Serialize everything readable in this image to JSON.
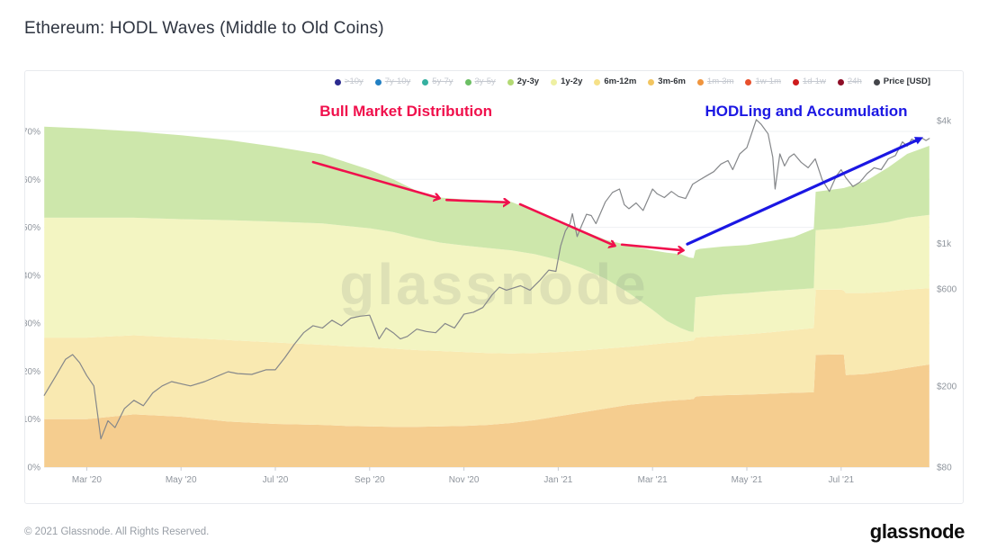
{
  "page": {
    "title": "Ethereum: HODL Waves (Middle to Old Coins)",
    "footer": {
      "copyright": "© 2021 Glassnode. All Rights Reserved.",
      "brand": "glassnode"
    }
  },
  "watermark": "glassnode",
  "legend": {
    "items": [
      {
        "label": ">10y",
        "color": "#2b2a8f",
        "active": false
      },
      {
        "label": "7y-10y",
        "color": "#2280c3",
        "active": false
      },
      {
        "label": "5y-7y",
        "color": "#35b0a0",
        "active": false
      },
      {
        "label": "3y-5y",
        "color": "#6cbf64",
        "active": false
      },
      {
        "label": "2y-3y",
        "color": "#b3d973",
        "active": true
      },
      {
        "label": "1y-2y",
        "color": "#eef0a2",
        "active": true
      },
      {
        "label": "6m-12m",
        "color": "#f6e188",
        "active": true
      },
      {
        "label": "3m-6m",
        "color": "#f2c560",
        "active": true
      },
      {
        "label": "1m-3m",
        "color": "#f0953e",
        "active": false
      },
      {
        "label": "1w-1m",
        "color": "#e8502c",
        "active": false
      },
      {
        "label": "1d-1w",
        "color": "#ce1a1c",
        "active": false
      },
      {
        "label": "24h",
        "color": "#8e0e27",
        "active": false
      },
      {
        "label": "Price [USD]",
        "color": "#43454a",
        "active": true
      }
    ]
  },
  "annotations": {
    "labels": [
      {
        "text": "Bull Market Distribution",
        "t": 7.77,
        "pct": 74.3,
        "color": "#f0104c"
      },
      {
        "text": "HODLing and Accumulation",
        "t": 16.26,
        "pct": 74.3,
        "color": "#1b17e3"
      }
    ],
    "arrows": [
      {
        "from": [
          5.8,
          63.6
        ],
        "to": [
          8.47,
          56.1
        ],
        "color": "#f0104c",
        "head": "chevron",
        "width": 2.6
      },
      {
        "from": [
          8.63,
          55.7
        ],
        "to": [
          9.94,
          55.2
        ],
        "color": "#f0104c",
        "head": "chevron",
        "width": 2.6
      },
      {
        "from": [
          10.19,
          54.8
        ],
        "to": [
          12.19,
          46.2
        ],
        "color": "#f0104c",
        "head": "chevron",
        "width": 2.6
      },
      {
        "from": [
          12.35,
          46.4
        ],
        "to": [
          13.64,
          45.2
        ],
        "color": "#f0104c",
        "head": "chevron",
        "width": 2.6
      },
      {
        "from": [
          13.74,
          46.5
        ],
        "to": [
          18.68,
          68.5
        ],
        "color": "#1b17e3",
        "head": "solid",
        "width": 3.2
      }
    ]
  },
  "chart_data": {
    "type": "area",
    "title": "Ethereum: HODL Waves (Middle to Old Coins)",
    "stack_unit": "% of supply",
    "x_epoch": "months since Feb 2020",
    "xlim_months": [
      0.1,
      18.87
    ],
    "grid": "horizontal",
    "legend_position": "top-right",
    "x_ticks": [
      {
        "t": 1,
        "label": "Mar '20"
      },
      {
        "t": 3,
        "label": "May '20"
      },
      {
        "t": 5,
        "label": "Jul '20"
      },
      {
        "t": 7,
        "label": "Sep '20"
      },
      {
        "t": 9,
        "label": "Nov '20"
      },
      {
        "t": 11,
        "label": "Jan '21"
      },
      {
        "t": 13,
        "label": "Mar '21"
      },
      {
        "t": 15,
        "label": "May '21"
      },
      {
        "t": 17,
        "label": "Jul '21"
      }
    ],
    "y_left": {
      "unit": "%",
      "ticks": [
        0,
        10,
        20,
        30,
        40,
        50,
        60,
        70
      ],
      "ylim": [
        0,
        82
      ]
    },
    "y_right": {
      "scale": "log",
      "ylim": [
        80,
        4000
      ],
      "ticks": [
        {
          "value": 4000,
          "label": "$4k"
        },
        {
          "value": 1000,
          "label": "$1k"
        },
        {
          "value": 600,
          "label": "$600"
        },
        {
          "value": 200,
          "label": "$200"
        },
        {
          "value": 80,
          "label": "$80"
        }
      ]
    },
    "t": [
      0.1,
      1,
      2,
      3,
      4,
      5,
      6,
      6.5,
      7,
      7.5,
      8,
      8.5,
      9,
      9.5,
      10,
      10.5,
      11,
      11.5,
      12,
      12.5,
      13,
      13.3,
      13.6,
      13.78,
      13.87,
      13.91,
      14,
      14.5,
      15,
      15.5,
      16,
      16.42,
      16.46,
      17,
      17.06,
      17.1,
      17.5,
      18,
      18.4,
      18.87
    ],
    "series_stacked": [
      {
        "name": "3m-6m",
        "fill": "#f5cd8f",
        "cumulative_top_pct": [
          10,
          10,
          11,
          10.5,
          9.5,
          9,
          8.8,
          8.6,
          8.5,
          8.4,
          8.4,
          8.5,
          8.6,
          8.8,
          9.2,
          9.8,
          10.6,
          11.4,
          12.2,
          13,
          13.5,
          13.8,
          14,
          14.1,
          14.2,
          14.7,
          14.8,
          15,
          15.1,
          15.3,
          15.5,
          15.6,
          23.4,
          23.5,
          23.4,
          19.2,
          19.4,
          20,
          20.7,
          21.4
        ]
      },
      {
        "name": "6m-12m",
        "fill": "#f9e9b1",
        "cumulative_top_pct": [
          27,
          27,
          27.5,
          27,
          26.5,
          26,
          25.5,
          25.2,
          25,
          24.7,
          24.4,
          24.2,
          24,
          23.8,
          23.7,
          23.8,
          24,
          24.3,
          24.7,
          25.1,
          25.6,
          25.9,
          26.1,
          26.3,
          26.4,
          27,
          27.1,
          27.4,
          27.7,
          28.1,
          28.6,
          29,
          37,
          37,
          36.8,
          36.3,
          36.3,
          36.6,
          37,
          37.3
        ]
      },
      {
        "name": "1y-2y",
        "fill": "#f3f5c2",
        "cumulative_top_pct": [
          52,
          52,
          52,
          51.7,
          51.5,
          51.2,
          50.8,
          50.3,
          49.8,
          49,
          47.8,
          46.8,
          46.2,
          45.7,
          45.2,
          44.4,
          43.2,
          41.5,
          39.3,
          36.3,
          32.8,
          30.5,
          29,
          28.3,
          28.2,
          35.4,
          35.5,
          36,
          36.3,
          36.7,
          37,
          37.3,
          49.4,
          49.8,
          49.9,
          50,
          50.4,
          51.1,
          52,
          52.6
        ]
      },
      {
        "name": "2y-3y",
        "fill": "#cde7ab",
        "cumulative_top_pct": [
          71,
          70.6,
          70,
          69.2,
          68.2,
          66.8,
          65.2,
          63.6,
          62,
          60,
          57.6,
          56.2,
          55.8,
          55.6,
          55.3,
          53.4,
          51,
          49.4,
          47.4,
          46.2,
          45.2,
          44.7,
          44.4,
          43.7,
          43.6,
          45.2,
          45.5,
          46,
          46.3,
          47.1,
          48,
          49.7,
          57.4,
          58.1,
          58.2,
          58.3,
          59.5,
          62.5,
          65.3,
          67
        ]
      }
    ],
    "price": {
      "name": "Price [USD]",
      "color": "#85878a",
      "points": [
        [
          0.1,
          180
        ],
        [
          0.35,
          225
        ],
        [
          0.55,
          270
        ],
        [
          0.7,
          285
        ],
        [
          0.85,
          260
        ],
        [
          1.0,
          225
        ],
        [
          1.15,
          200
        ],
        [
          1.3,
          110
        ],
        [
          1.45,
          135
        ],
        [
          1.6,
          125
        ],
        [
          1.8,
          155
        ],
        [
          2.0,
          170
        ],
        [
          2.2,
          160
        ],
        [
          2.4,
          185
        ],
        [
          2.6,
          200
        ],
        [
          2.8,
          210
        ],
        [
          3.0,
          205
        ],
        [
          3.2,
          200
        ],
        [
          3.5,
          210
        ],
        [
          3.8,
          225
        ],
        [
          4.0,
          235
        ],
        [
          4.2,
          230
        ],
        [
          4.5,
          228
        ],
        [
          4.8,
          240
        ],
        [
          5.0,
          240
        ],
        [
          5.2,
          275
        ],
        [
          5.4,
          320
        ],
        [
          5.6,
          365
        ],
        [
          5.8,
          395
        ],
        [
          6.0,
          385
        ],
        [
          6.2,
          420
        ],
        [
          6.4,
          395
        ],
        [
          6.6,
          430
        ],
        [
          6.8,
          440
        ],
        [
          7.0,
          445
        ],
        [
          7.1,
          390
        ],
        [
          7.2,
          340
        ],
        [
          7.35,
          385
        ],
        [
          7.5,
          365
        ],
        [
          7.65,
          340
        ],
        [
          7.8,
          350
        ],
        [
          8.0,
          380
        ],
        [
          8.2,
          370
        ],
        [
          8.4,
          365
        ],
        [
          8.6,
          405
        ],
        [
          8.8,
          385
        ],
        [
          9.0,
          450
        ],
        [
          9.2,
          460
        ],
        [
          9.4,
          485
        ],
        [
          9.6,
          560
        ],
        [
          9.75,
          610
        ],
        [
          9.9,
          590
        ],
        [
          10.0,
          600
        ],
        [
          10.2,
          620
        ],
        [
          10.4,
          590
        ],
        [
          10.6,
          655
        ],
        [
          10.8,
          740
        ],
        [
          10.95,
          730
        ],
        [
          11.05,
          970
        ],
        [
          11.15,
          1150
        ],
        [
          11.25,
          1250
        ],
        [
          11.3,
          1400
        ],
        [
          11.4,
          1080
        ],
        [
          11.5,
          1230
        ],
        [
          11.6,
          1390
        ],
        [
          11.7,
          1370
        ],
        [
          11.8,
          1250
        ],
        [
          12.0,
          1600
        ],
        [
          12.15,
          1780
        ],
        [
          12.3,
          1850
        ],
        [
          12.4,
          1550
        ],
        [
          12.5,
          1480
        ],
        [
          12.65,
          1580
        ],
        [
          12.8,
          1450
        ],
        [
          13.0,
          1850
        ],
        [
          13.1,
          1750
        ],
        [
          13.25,
          1680
        ],
        [
          13.4,
          1800
        ],
        [
          13.55,
          1700
        ],
        [
          13.7,
          1660
        ],
        [
          13.85,
          1950
        ],
        [
          14.0,
          2050
        ],
        [
          14.15,
          2150
        ],
        [
          14.3,
          2250
        ],
        [
          14.45,
          2450
        ],
        [
          14.6,
          2550
        ],
        [
          14.7,
          2300
        ],
        [
          14.85,
          2750
        ],
        [
          15.0,
          2950
        ],
        [
          15.1,
          3450
        ],
        [
          15.2,
          4050
        ],
        [
          15.3,
          3850
        ],
        [
          15.45,
          3450
        ],
        [
          15.55,
          2650
        ],
        [
          15.6,
          1850
        ],
        [
          15.7,
          2750
        ],
        [
          15.8,
          2400
        ],
        [
          15.9,
          2650
        ],
        [
          16.0,
          2750
        ],
        [
          16.15,
          2500
        ],
        [
          16.3,
          2350
        ],
        [
          16.45,
          2600
        ],
        [
          16.6,
          2050
        ],
        [
          16.75,
          1800
        ],
        [
          16.9,
          2150
        ],
        [
          17.0,
          2300
        ],
        [
          17.1,
          2100
        ],
        [
          17.25,
          1900
        ],
        [
          17.4,
          2000
        ],
        [
          17.55,
          2200
        ],
        [
          17.7,
          2350
        ],
        [
          17.85,
          2300
        ],
        [
          18.0,
          2600
        ],
        [
          18.15,
          2700
        ],
        [
          18.3,
          3150
        ],
        [
          18.4,
          3000
        ],
        [
          18.5,
          3250
        ],
        [
          18.6,
          3150
        ],
        [
          18.7,
          3300
        ],
        [
          18.8,
          3200
        ],
        [
          18.87,
          3270
        ]
      ]
    }
  }
}
